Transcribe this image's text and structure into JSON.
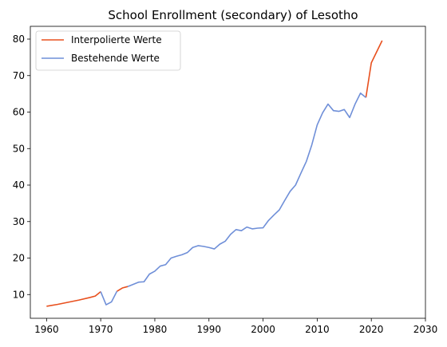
{
  "chart_data": {
    "type": "line",
    "title": "School Enrollment (secondary) of Lesotho",
    "xlabel": "",
    "ylabel": "",
    "xlim": [
      1957,
      2030
    ],
    "ylim": [
      3.5,
      83.5
    ],
    "xticks": [
      1960,
      1970,
      1980,
      1990,
      2000,
      2010,
      2020,
      2030
    ],
    "yticks": [
      10,
      20,
      30,
      40,
      50,
      60,
      70,
      80
    ],
    "grid": false,
    "legend_position": "top-left",
    "series": [
      {
        "name": "Interpolierte Werte",
        "color": "#e8501e",
        "segments": [
          [
            [
              1960,
              6.8
            ],
            [
              1962,
              7.3
            ],
            [
              1964,
              7.9
            ],
            [
              1966,
              8.5
            ],
            [
              1968,
              9.2
            ],
            [
              1969,
              9.6
            ],
            [
              1970,
              10.8
            ]
          ],
          [
            [
              1973,
              10.9
            ],
            [
              1974,
              11.8
            ],
            [
              1975,
              12.2
            ]
          ],
          [
            [
              2019,
              64.0
            ],
            [
              2020,
              73.5
            ],
            [
              2022,
              79.6
            ]
          ]
        ]
      },
      {
        "name": "Bestehende Werte",
        "color": "#6f8fd8",
        "segments": [
          [
            [
              1970,
              10.8
            ],
            [
              1971,
              7.2
            ],
            [
              1972,
              8.0
            ],
            [
              1973,
              10.9
            ]
          ],
          [
            [
              1975,
              12.2
            ],
            [
              1976,
              12.8
            ],
            [
              1977,
              13.4
            ],
            [
              1978,
              13.5
            ],
            [
              1979,
              15.6
            ],
            [
              1980,
              16.4
            ],
            [
              1981,
              17.8
            ],
            [
              1982,
              18.2
            ],
            [
              1983,
              20.0
            ],
            [
              1984,
              20.5
            ],
            [
              1985,
              20.9
            ],
            [
              1986,
              21.5
            ],
            [
              1987,
              22.9
            ],
            [
              1988,
              23.4
            ],
            [
              1989,
              23.2
            ],
            [
              1990,
              22.9
            ],
            [
              1991,
              22.5
            ],
            [
              1992,
              23.8
            ],
            [
              1993,
              24.6
            ],
            [
              1994,
              26.5
            ],
            [
              1995,
              27.8
            ],
            [
              1996,
              27.5
            ],
            [
              1997,
              28.5
            ],
            [
              1998,
              28.0
            ],
            [
              1999,
              28.2
            ],
            [
              2000,
              28.3
            ],
            [
              2001,
              30.3
            ],
            [
              2002,
              31.8
            ],
            [
              2003,
              33.2
            ],
            [
              2004,
              35.8
            ],
            [
              2005,
              38.3
            ],
            [
              2006,
              40.0
            ],
            [
              2007,
              43.3
            ],
            [
              2008,
              46.5
            ],
            [
              2009,
              51.0
            ],
            [
              2010,
              56.5
            ],
            [
              2011,
              59.8
            ],
            [
              2012,
              62.2
            ],
            [
              2013,
              60.4
            ],
            [
              2014,
              60.2
            ],
            [
              2015,
              60.7
            ],
            [
              2016,
              58.5
            ],
            [
              2017,
              62.2
            ],
            [
              2018,
              65.2
            ],
            [
              2019,
              64.0
            ]
          ]
        ]
      }
    ]
  }
}
